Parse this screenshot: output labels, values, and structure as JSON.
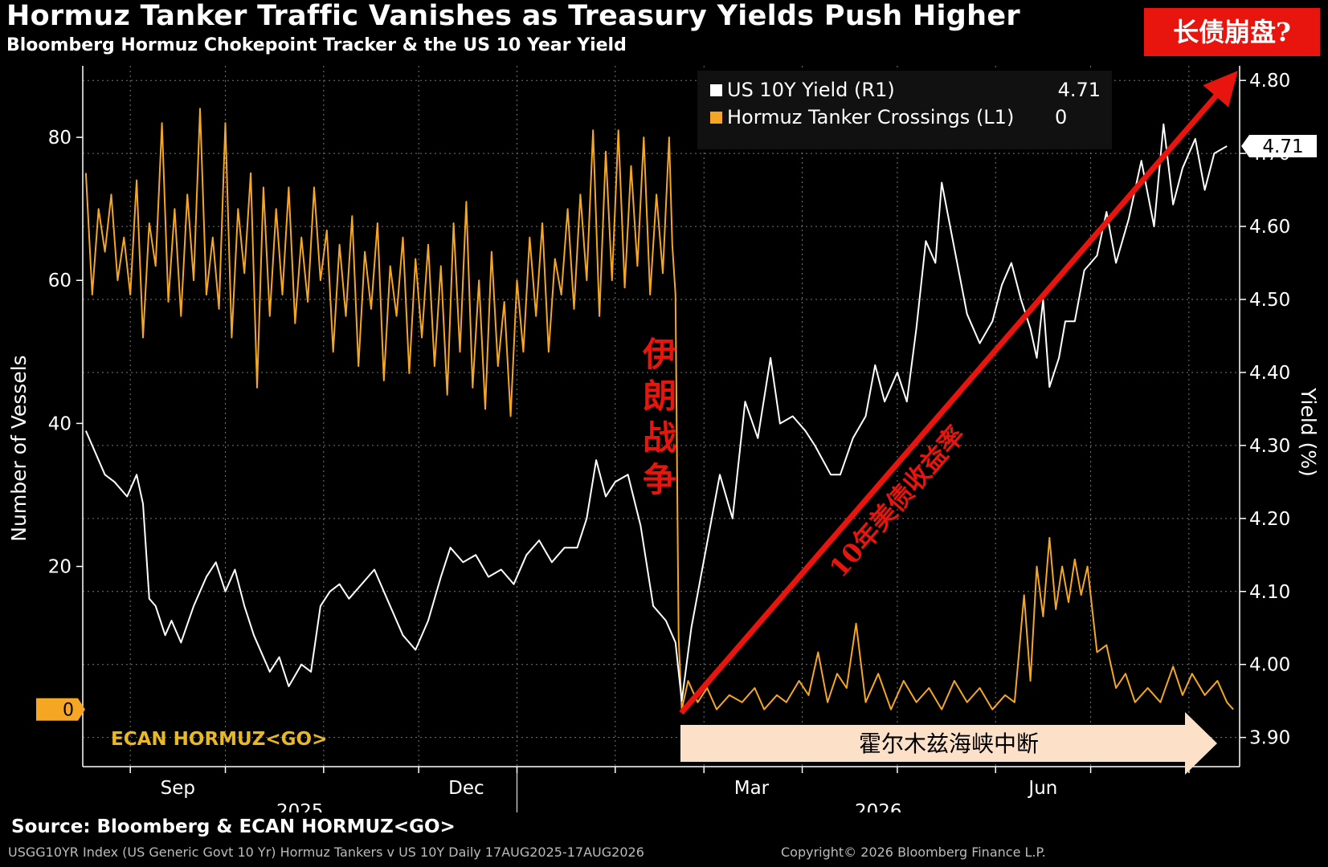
{
  "header": {
    "title": "Hormuz Tanker Traffic Vanishes as Treasury Yields Push Higher",
    "subtitle": "Bloomberg Hormuz Chokepoint Tracker & the US 10 Year Yield",
    "badge": "长债崩盘?"
  },
  "footer": {
    "source": "Source: Bloomberg & ECAN HORMUZ<GO>",
    "left": "USGG10YR Index (US Generic Govt 10 Yr) Hormuz Tankers v US 10Y Daily 17AUG2025-17AUG2026",
    "right": "Copyright© 2026 Bloomberg Finance L.P."
  },
  "annotations": {
    "war": [
      "伊",
      "朗",
      "战",
      "争"
    ],
    "trend": "10年美债收益率",
    "disruption": "霍尔木兹海峡中断",
    "ecan": "ECAN HORMUZ<GO>"
  },
  "colors": {
    "background": "#000000",
    "yield_line": "#ffffff",
    "tanker_line": "#f5a623",
    "annotation_red": "#e8150f",
    "arrow_fill": "#fde0c8"
  },
  "chart_data": {
    "type": "line",
    "x_range": [
      "2025-08-17",
      "2026-08-17"
    ],
    "x_ticks": [
      "Sep",
      "Dec",
      "Mar",
      "Jun"
    ],
    "year_labels": [
      "2025",
      "2026"
    ],
    "left_axis": {
      "label": "Number of Vessels",
      "ticks": [
        20,
        40,
        60,
        80
      ],
      "zero_label": "0",
      "range": [
        -8,
        90
      ]
    },
    "right_axis": {
      "label": "Yield (%)",
      "ticks": [
        "3.90",
        "4.00",
        "4.10",
        "4.20",
        "4.30",
        "4.40",
        "4.50",
        "4.60",
        "4.70",
        "4.80"
      ],
      "range": [
        3.86,
        4.82
      ],
      "last_value_label": "4.71"
    },
    "legend": {
      "placement": "top-right",
      "entries": [
        {
          "name": "US 10Y Yield (R1)",
          "value": "4.71",
          "color": "#ffffff"
        },
        {
          "name": "Hormuz Tanker Crossings (L1)",
          "value": "0",
          "color": "#f5a623"
        }
      ]
    },
    "series": [
      {
        "name": "US 10Y Yield (R1)",
        "axis": "right",
        "points": [
          [
            "2025-08-18",
            4.32
          ],
          [
            "2025-08-20",
            4.3
          ],
          [
            "2025-08-24",
            4.26
          ],
          [
            "2025-08-27",
            4.25
          ],
          [
            "2025-08-31",
            4.23
          ],
          [
            "2025-09-03",
            4.26
          ],
          [
            "2025-09-05",
            4.22
          ],
          [
            "2025-09-07",
            4.09
          ],
          [
            "2025-09-09",
            4.08
          ],
          [
            "2025-09-12",
            4.04
          ],
          [
            "2025-09-14",
            4.06
          ],
          [
            "2025-09-17",
            4.03
          ],
          [
            "2025-09-21",
            4.08
          ],
          [
            "2025-09-25",
            4.12
          ],
          [
            "2025-09-28",
            4.14
          ],
          [
            "2025-10-01",
            4.1
          ],
          [
            "2025-10-04",
            4.13
          ],
          [
            "2025-10-07",
            4.08
          ],
          [
            "2025-10-10",
            4.04
          ],
          [
            "2025-10-15",
            3.99
          ],
          [
            "2025-10-18",
            4.01
          ],
          [
            "2025-10-21",
            3.97
          ],
          [
            "2025-10-25",
            4.0
          ],
          [
            "2025-10-28",
            3.99
          ],
          [
            "2025-10-31",
            4.08
          ],
          [
            "2025-11-03",
            4.1
          ],
          [
            "2025-11-06",
            4.11
          ],
          [
            "2025-11-09",
            4.09
          ],
          [
            "2025-11-13",
            4.11
          ],
          [
            "2025-11-17",
            4.13
          ],
          [
            "2025-11-21",
            4.09
          ],
          [
            "2025-11-26",
            4.04
          ],
          [
            "2025-11-30",
            4.02
          ],
          [
            "2025-12-04",
            4.06
          ],
          [
            "2025-12-08",
            4.12
          ],
          [
            "2025-12-11",
            4.16
          ],
          [
            "2025-12-15",
            4.14
          ],
          [
            "2025-12-19",
            4.15
          ],
          [
            "2025-12-23",
            4.12
          ],
          [
            "2025-12-27",
            4.13
          ],
          [
            "2025-12-31",
            4.11
          ],
          [
            "2026-01-04",
            4.15
          ],
          [
            "2026-01-08",
            4.17
          ],
          [
            "2026-01-12",
            4.14
          ],
          [
            "2026-01-16",
            4.16
          ],
          [
            "2026-01-20",
            4.16
          ],
          [
            "2026-01-23",
            4.2
          ],
          [
            "2026-01-26",
            4.28
          ],
          [
            "2026-01-29",
            4.23
          ],
          [
            "2026-02-01",
            4.25
          ],
          [
            "2026-02-05",
            4.26
          ],
          [
            "2026-02-09",
            4.19
          ],
          [
            "2026-02-13",
            4.08
          ],
          [
            "2026-02-17",
            4.06
          ],
          [
            "2026-02-20",
            4.03
          ],
          [
            "2026-02-22",
            3.95
          ],
          [
            "2026-02-25",
            4.05
          ],
          [
            "2026-02-28",
            4.12
          ],
          [
            "2026-03-03",
            4.19
          ],
          [
            "2026-03-06",
            4.26
          ],
          [
            "2026-03-10",
            4.2
          ],
          [
            "2026-03-14",
            4.36
          ],
          [
            "2026-03-18",
            4.31
          ],
          [
            "2026-03-22",
            4.42
          ],
          [
            "2026-03-25",
            4.33
          ],
          [
            "2026-03-29",
            4.34
          ],
          [
            "2026-04-02",
            4.32
          ],
          [
            "2026-04-05",
            4.3
          ],
          [
            "2026-04-10",
            4.26
          ],
          [
            "2026-04-13",
            4.26
          ],
          [
            "2026-04-17",
            4.31
          ],
          [
            "2026-04-21",
            4.34
          ],
          [
            "2026-04-24",
            4.41
          ],
          [
            "2026-04-27",
            4.36
          ],
          [
            "2026-05-01",
            4.4
          ],
          [
            "2026-05-04",
            4.36
          ],
          [
            "2026-05-07",
            4.46
          ],
          [
            "2026-05-10",
            4.58
          ],
          [
            "2026-05-13",
            4.55
          ],
          [
            "2026-05-15",
            4.66
          ],
          [
            "2026-05-19",
            4.57
          ],
          [
            "2026-05-23",
            4.48
          ],
          [
            "2026-05-27",
            4.44
          ],
          [
            "2026-05-31",
            4.47
          ],
          [
            "2026-06-03",
            4.52
          ],
          [
            "2026-06-06",
            4.55
          ],
          [
            "2026-06-09",
            4.5
          ],
          [
            "2026-06-12",
            4.46
          ],
          [
            "2026-06-14",
            4.42
          ],
          [
            "2026-06-16",
            4.5
          ],
          [
            "2026-06-18",
            4.38
          ],
          [
            "2026-06-21",
            4.42
          ],
          [
            "2026-06-23",
            4.47
          ],
          [
            "2026-06-26",
            4.47
          ],
          [
            "2026-06-29",
            4.54
          ],
          [
            "2026-07-03",
            4.56
          ],
          [
            "2026-07-06",
            4.62
          ],
          [
            "2026-07-09",
            4.55
          ],
          [
            "2026-07-13",
            4.61
          ],
          [
            "2026-07-17",
            4.69
          ],
          [
            "2026-07-21",
            4.6
          ],
          [
            "2026-07-24",
            4.74
          ],
          [
            "2026-07-27",
            4.63
          ],
          [
            "2026-07-30",
            4.68
          ],
          [
            "2026-08-03",
            4.72
          ],
          [
            "2026-08-06",
            4.65
          ],
          [
            "2026-08-09",
            4.7
          ],
          [
            "2026-08-13",
            4.71
          ]
        ]
      },
      {
        "name": "Hormuz Tanker Crossings (L1)",
        "axis": "left",
        "points": [
          [
            "2025-08-18",
            75
          ],
          [
            "2025-08-20",
            58
          ],
          [
            "2025-08-22",
            70
          ],
          [
            "2025-08-24",
            64
          ],
          [
            "2025-08-26",
            72
          ],
          [
            "2025-08-28",
            60
          ],
          [
            "2025-08-30",
            66
          ],
          [
            "2025-09-01",
            58
          ],
          [
            "2025-09-03",
            74
          ],
          [
            "2025-09-05",
            52
          ],
          [
            "2025-09-07",
            68
          ],
          [
            "2025-09-09",
            62
          ],
          [
            "2025-09-11",
            82
          ],
          [
            "2025-09-13",
            57
          ],
          [
            "2025-09-15",
            70
          ],
          [
            "2025-09-17",
            55
          ],
          [
            "2025-09-19",
            72
          ],
          [
            "2025-09-21",
            60
          ],
          [
            "2025-09-23",
            84
          ],
          [
            "2025-09-25",
            58
          ],
          [
            "2025-09-27",
            66
          ],
          [
            "2025-09-29",
            56
          ],
          [
            "2025-10-01",
            82
          ],
          [
            "2025-10-03",
            52
          ],
          [
            "2025-10-05",
            70
          ],
          [
            "2025-10-07",
            61
          ],
          [
            "2025-10-09",
            75
          ],
          [
            "2025-10-11",
            45
          ],
          [
            "2025-10-13",
            73
          ],
          [
            "2025-10-15",
            55
          ],
          [
            "2025-10-17",
            70
          ],
          [
            "2025-10-19",
            58
          ],
          [
            "2025-10-21",
            73
          ],
          [
            "2025-10-23",
            54
          ],
          [
            "2025-10-25",
            66
          ],
          [
            "2025-10-27",
            57
          ],
          [
            "2025-10-29",
            73
          ],
          [
            "2025-10-31",
            60
          ],
          [
            "2025-11-02",
            67
          ],
          [
            "2025-11-04",
            50
          ],
          [
            "2025-11-06",
            65
          ],
          [
            "2025-11-08",
            55
          ],
          [
            "2025-11-10",
            69
          ],
          [
            "2025-11-12",
            48
          ],
          [
            "2025-11-14",
            64
          ],
          [
            "2025-11-16",
            56
          ],
          [
            "2025-11-18",
            68
          ],
          [
            "2025-11-20",
            46
          ],
          [
            "2025-11-22",
            62
          ],
          [
            "2025-11-24",
            55
          ],
          [
            "2025-11-26",
            66
          ],
          [
            "2025-11-28",
            47
          ],
          [
            "2025-11-30",
            63
          ],
          [
            "2025-12-02",
            52
          ],
          [
            "2025-12-04",
            65
          ],
          [
            "2025-12-06",
            48
          ],
          [
            "2025-12-08",
            62
          ],
          [
            "2025-12-10",
            44
          ],
          [
            "2025-12-12",
            68
          ],
          [
            "2025-12-14",
            50
          ],
          [
            "2025-12-16",
            71
          ],
          [
            "2025-12-18",
            45
          ],
          [
            "2025-12-20",
            60
          ],
          [
            "2025-12-22",
            42
          ],
          [
            "2025-12-24",
            64
          ],
          [
            "2025-12-26",
            48
          ],
          [
            "2025-12-28",
            57
          ],
          [
            "2025-12-30",
            41
          ],
          [
            "2026-01-01",
            60
          ],
          [
            "2026-01-03",
            50
          ],
          [
            "2026-01-05",
            66
          ],
          [
            "2026-01-07",
            55
          ],
          [
            "2026-01-09",
            68
          ],
          [
            "2026-01-11",
            50
          ],
          [
            "2026-01-13",
            63
          ],
          [
            "2026-01-15",
            58
          ],
          [
            "2026-01-17",
            70
          ],
          [
            "2026-01-19",
            56
          ],
          [
            "2026-01-21",
            72
          ],
          [
            "2026-01-23",
            60
          ],
          [
            "2026-01-25",
            81
          ],
          [
            "2026-01-27",
            55
          ],
          [
            "2026-01-29",
            78
          ],
          [
            "2026-01-31",
            60
          ],
          [
            "2026-02-02",
            81
          ],
          [
            "2026-02-04",
            59
          ],
          [
            "2026-02-06",
            76
          ],
          [
            "2026-02-08",
            62
          ],
          [
            "2026-02-10",
            80
          ],
          [
            "2026-02-12",
            58
          ],
          [
            "2026-02-14",
            72
          ],
          [
            "2026-02-16",
            61
          ],
          [
            "2026-02-18",
            80
          ],
          [
            "2026-02-19",
            65
          ],
          [
            "2026-02-20",
            58
          ],
          [
            "2026-02-21",
            10
          ],
          [
            "2026-02-22",
            0
          ],
          [
            "2026-02-24",
            4
          ],
          [
            "2026-02-27",
            1
          ],
          [
            "2026-03-02",
            3
          ],
          [
            "2026-03-05",
            0
          ],
          [
            "2026-03-09",
            2
          ],
          [
            "2026-03-13",
            1
          ],
          [
            "2026-03-17",
            3
          ],
          [
            "2026-03-20",
            0
          ],
          [
            "2026-03-24",
            2
          ],
          [
            "2026-03-27",
            1
          ],
          [
            "2026-03-31",
            4
          ],
          [
            "2026-04-03",
            2
          ],
          [
            "2026-04-06",
            8
          ],
          [
            "2026-04-09",
            1
          ],
          [
            "2026-04-12",
            5
          ],
          [
            "2026-04-15",
            3
          ],
          [
            "2026-04-18",
            12
          ],
          [
            "2026-04-21",
            1
          ],
          [
            "2026-04-25",
            5
          ],
          [
            "2026-04-29",
            0
          ],
          [
            "2026-05-03",
            4
          ],
          [
            "2026-05-07",
            1
          ],
          [
            "2026-05-11",
            3
          ],
          [
            "2026-05-15",
            0
          ],
          [
            "2026-05-19",
            4
          ],
          [
            "2026-05-23",
            1
          ],
          [
            "2026-05-27",
            3
          ],
          [
            "2026-05-31",
            0
          ],
          [
            "2026-06-04",
            2
          ],
          [
            "2026-06-07",
            1
          ],
          [
            "2026-06-10",
            16
          ],
          [
            "2026-06-12",
            4
          ],
          [
            "2026-06-14",
            20
          ],
          [
            "2026-06-16",
            13
          ],
          [
            "2026-06-18",
            24
          ],
          [
            "2026-06-20",
            14
          ],
          [
            "2026-06-22",
            20
          ],
          [
            "2026-06-24",
            15
          ],
          [
            "2026-06-26",
            21
          ],
          [
            "2026-06-28",
            16
          ],
          [
            "2026-06-30",
            20
          ],
          [
            "2026-07-03",
            8
          ],
          [
            "2026-07-06",
            9
          ],
          [
            "2026-07-09",
            3
          ],
          [
            "2026-07-12",
            5
          ],
          [
            "2026-07-15",
            1
          ],
          [
            "2026-07-19",
            3
          ],
          [
            "2026-07-23",
            1
          ],
          [
            "2026-07-27",
            6
          ],
          [
            "2026-07-30",
            2
          ],
          [
            "2026-08-02",
            5
          ],
          [
            "2026-08-06",
            2
          ],
          [
            "2026-08-10",
            4
          ],
          [
            "2026-08-13",
            1
          ],
          [
            "2026-08-15",
            0
          ]
        ]
      }
    ]
  }
}
